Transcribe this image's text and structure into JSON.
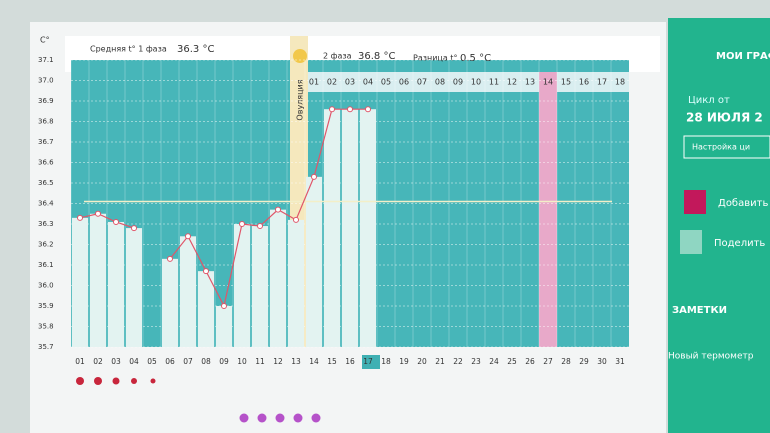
{
  "chart_data": {
    "type": "line",
    "y_label": "C°",
    "phase1_label": "Средняя t° 1 фаза",
    "phase1_avg": "36.3 °C",
    "phase2_label": "2 фаза",
    "phase2_avg": "36.8 °C",
    "diff_label": "Разница t°",
    "diff_value": "0.5 °C",
    "ovulation_label": "Овуляция",
    "phase2_days": [
      "01",
      "02",
      "03",
      "04",
      "05",
      "06",
      "07",
      "08",
      "09",
      "10",
      "11",
      "12",
      "13",
      "14",
      "15",
      "16",
      "17",
      "18"
    ],
    "categories": [
      "01",
      "02",
      "03",
      "04",
      "05",
      "06",
      "07",
      "08",
      "09",
      "10",
      "11",
      "12",
      "13",
      "14",
      "15",
      "16",
      "17",
      "18",
      "19",
      "20",
      "21",
      "22",
      "23",
      "24",
      "25",
      "26",
      "27",
      "28",
      "29",
      "30",
      "31"
    ],
    "series": [
      {
        "color": "#e0566a",
        "values": [
          36.33,
          36.35,
          36.31,
          36.28,
          null,
          36.13,
          36.24,
          36.07,
          35.9,
          36.3,
          36.29,
          36.37,
          36.32,
          36.53,
          36.86,
          36.86,
          36.86,
          null,
          null,
          null,
          null,
          null,
          null,
          null,
          null,
          null,
          null,
          null,
          null,
          null,
          null
        ]
      }
    ],
    "cover_line": 36.41,
    "ylim": [
      35.7,
      37.1
    ],
    "yticks": [
      35.7,
      35.8,
      35.9,
      {
        "value": 36,
        "label": "36.0"
      },
      36.1,
      36.2,
      36.3,
      36.4,
      36.5,
      36.6,
      36.7,
      36.8,
      36.9,
      {
        "value": 37,
        "label": "37.0"
      },
      37.1
    ],
    "grid": true
  },
  "sidebar": {
    "title": "МОИ ГРАФ",
    "cycle_label": "Цикл от",
    "cycle_date": "28 ИЮЛЯ 2",
    "settings": "Настройка ци",
    "add": "Добавить",
    "share": "Поделить",
    "notes": "ЗАМЕТКИ",
    "note": "Новый термометр"
  }
}
